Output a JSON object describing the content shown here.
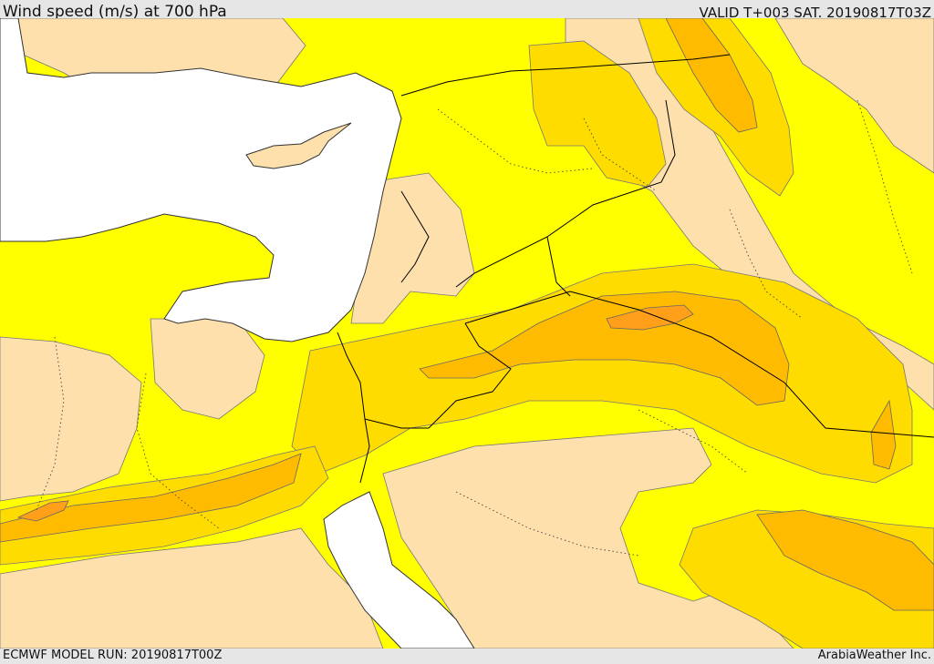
{
  "header": {
    "title": "Wind speed (m/s) at 700 hPa",
    "valid_time": "VALID T+003 SAT. 20190817T03Z"
  },
  "footer": {
    "model_run": "ECMWF MODEL RUN: 20190817T00Z",
    "provider": "ArabiaWeather Inc."
  },
  "map": {
    "variable": "wind speed",
    "level": "700 hPa",
    "colors": {
      "calm": "#fde0ac",
      "light": "#ffff00",
      "moderate": "#ffdc00",
      "strong": "#ffbb00",
      "very_strong": "#ff9f1a",
      "sea": "#ffffff",
      "contour": "#666666",
      "border": "#000000"
    }
  }
}
